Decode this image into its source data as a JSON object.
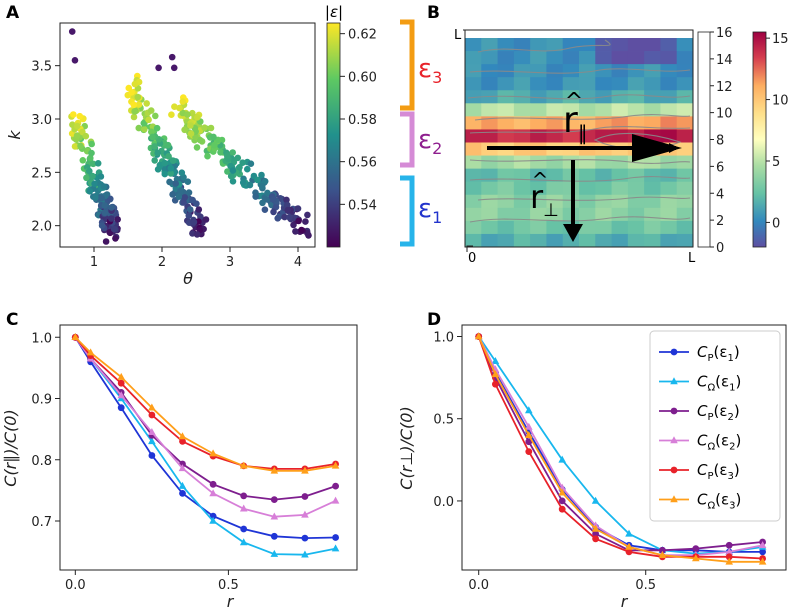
{
  "panels": {
    "A": "A",
    "B": "B",
    "C": "C",
    "D": "D"
  },
  "panelA": {
    "xlabel": "θ",
    "ylabel": "k",
    "xlim": [
      0.5,
      4.25
    ],
    "ylim": [
      1.8,
      3.9
    ],
    "xticks": [
      1,
      2,
      3,
      4
    ],
    "yticks": [
      2.0,
      2.5,
      3.0,
      3.5
    ],
    "ytick_labels": [
      "2.0",
      "2.5",
      "3.0",
      "3.5"
    ],
    "colorbar": {
      "label": "|ε|",
      "range": [
        0.52,
        0.625
      ],
      "ticks": [
        0.54,
        0.56,
        0.58,
        0.6,
        0.62
      ],
      "tick_labels": [
        "0.54",
        "0.56",
        "0.58",
        "0.60",
        "0.62"
      ]
    },
    "clusters": [
      {
        "name": "cluster-1",
        "theta_range": [
          0.75,
          1.3
        ],
        "k_top": 3.05,
        "k_bottom": 1.9
      },
      {
        "name": "cluster-2",
        "theta_range": [
          1.55,
          2.6
        ],
        "k_top": 3.35,
        "k_bottom": 1.95
      },
      {
        "name": "cluster-3",
        "theta_range": [
          2.2,
          4.1
        ],
        "k_top": 3.15,
        "k_bottom": 2.0
      }
    ],
    "outliers": [
      {
        "theta": 0.68,
        "k": 3.82
      },
      {
        "theta": 0.72,
        "k": 3.55
      },
      {
        "theta": 1.95,
        "k": 3.48
      },
      {
        "theta": 2.15,
        "k": 3.58
      },
      {
        "theta": 2.18,
        "k": 3.48
      }
    ]
  },
  "brackets": [
    {
      "label": "ε",
      "sub": "3",
      "color": "#f39c12",
      "text_color": "#e8222a"
    },
    {
      "label": "ε",
      "sub": "2",
      "color": "#d58bd6",
      "text_color": "#8e1e8e"
    },
    {
      "label": "ε",
      "sub": "1",
      "color": "#27b4ea",
      "text_color": "#2233cc"
    }
  ],
  "panelB": {
    "corner_top_left": "L",
    "corner_bottom_left": "0",
    "corner_bottom_right": "L",
    "r_par": "r",
    "r_par_sub": "∥",
    "r_perp": "r",
    "r_perp_sub": "⊥",
    "side_ticks": [
      "0",
      "2",
      "4",
      "6",
      "8",
      "10",
      "12",
      "14",
      "16"
    ],
    "colorbar": {
      "range": [
        -2,
        15.5
      ],
      "ticks": [
        0,
        5,
        10,
        15
      ],
      "tick_labels": [
        "0",
        "5",
        "10",
        "15"
      ]
    }
  },
  "panelC": {
    "xlabel": "r",
    "ylabel": "C(r∥)/C(0)",
    "xlim": [
      -0.05,
      0.92
    ],
    "ylim": [
      0.62,
      1.02
    ],
    "xticks": [
      0.0,
      0.5
    ],
    "xtick_labels": [
      "0.0",
      "0.5"
    ],
    "yticks": [
      0.7,
      0.8,
      0.9,
      1.0
    ],
    "ytick_labels": [
      "0.7",
      "0.8",
      "0.9",
      "1.0"
    ]
  },
  "panelD": {
    "xlabel": "r",
    "ylabel": "C(r⊥)/C(0)",
    "xlim": [
      -0.05,
      0.92
    ],
    "ylim": [
      -0.42,
      1.07
    ],
    "xticks": [
      0.0,
      0.5
    ],
    "xtick_labels": [
      "0.0",
      "0.5"
    ],
    "yticks": [
      0.0,
      0.5,
      1.0
    ],
    "ytick_labels": [
      "0.0",
      "0.5",
      "1.0"
    ]
  },
  "chart_data": [
    {
      "type": "line",
      "panel": "C",
      "xlabel": "r",
      "ylabel": "C(r∥)/C(0)",
      "x": [
        0.0,
        0.05,
        0.15,
        0.25,
        0.35,
        0.45,
        0.55,
        0.65,
        0.75,
        0.85
      ],
      "series": [
        {
          "name": "C_P(ε1)",
          "color": "#1f35d6",
          "marker": "circle",
          "values": [
            1.0,
            0.96,
            0.885,
            0.807,
            0.745,
            0.708,
            0.687,
            0.675,
            0.672,
            0.673
          ]
        },
        {
          "name": "C_Ω(ε1)",
          "color": "#18b7ee",
          "marker": "triangle",
          "values": [
            1.0,
            0.965,
            0.9,
            0.83,
            0.757,
            0.7,
            0.665,
            0.646,
            0.645,
            0.655
          ]
        },
        {
          "name": "C_P(ε2)",
          "color": "#7e1e8e",
          "marker": "circle",
          "values": [
            1.0,
            0.965,
            0.91,
            0.84,
            0.793,
            0.76,
            0.741,
            0.735,
            0.74,
            0.757
          ]
        },
        {
          "name": "C_Ω(ε2)",
          "color": "#d77fd8",
          "marker": "triangle",
          "values": [
            1.0,
            0.965,
            0.905,
            0.845,
            0.786,
            0.745,
            0.72,
            0.707,
            0.71,
            0.733
          ]
        },
        {
          "name": "C_P(ε3)",
          "color": "#e8222a",
          "marker": "circle",
          "values": [
            1.0,
            0.97,
            0.925,
            0.873,
            0.83,
            0.806,
            0.79,
            0.785,
            0.785,
            0.793
          ]
        },
        {
          "name": "C_Ω(ε3)",
          "color": "#ff9f1a",
          "marker": "triangle",
          "values": [
            1.0,
            0.975,
            0.935,
            0.885,
            0.838,
            0.81,
            0.79,
            0.782,
            0.782,
            0.79
          ]
        }
      ]
    },
    {
      "type": "line",
      "panel": "D",
      "xlabel": "r",
      "ylabel": "C(r⊥)/C(0)",
      "x": [
        0.0,
        0.05,
        0.15,
        0.25,
        0.35,
        0.45,
        0.55,
        0.65,
        0.75,
        0.85
      ],
      "series": [
        {
          "name": "C_P(ε1)",
          "color": "#1f35d6",
          "marker": "circle",
          "values": [
            1.0,
            0.78,
            0.42,
            0.07,
            -0.16,
            -0.27,
            -0.3,
            -0.3,
            -0.31,
            -0.31
          ]
        },
        {
          "name": "C_Ω(ε1)",
          "color": "#18b7ee",
          "marker": "triangle",
          "values": [
            1.0,
            0.85,
            0.55,
            0.25,
            0.0,
            -0.2,
            -0.3,
            -0.32,
            -0.31,
            -0.28
          ]
        },
        {
          "name": "C_P(ε2)",
          "color": "#7e1e8e",
          "marker": "circle",
          "values": [
            1.0,
            0.75,
            0.36,
            0.0,
            -0.2,
            -0.3,
            -0.3,
            -0.29,
            -0.27,
            -0.25
          ]
        },
        {
          "name": "C_Ω(ε2)",
          "color": "#d77fd8",
          "marker": "triangle",
          "values": [
            1.0,
            0.8,
            0.45,
            0.08,
            -0.15,
            -0.28,
            -0.33,
            -0.33,
            -0.31,
            -0.27
          ]
        },
        {
          "name": "C_P(ε3)",
          "color": "#e8222a",
          "marker": "circle",
          "values": [
            1.0,
            0.71,
            0.3,
            -0.05,
            -0.23,
            -0.31,
            -0.34,
            -0.34,
            -0.34,
            -0.35
          ]
        },
        {
          "name": "C_Ω(ε3)",
          "color": "#ff9f1a",
          "marker": "triangle",
          "values": [
            1.0,
            0.77,
            0.4,
            0.05,
            -0.17,
            -0.28,
            -0.33,
            -0.35,
            -0.37,
            -0.37
          ]
        }
      ],
      "legend": {
        "placement": "top-right",
        "entries": [
          {
            "main": "C",
            "sub": "P",
            "arg": "(ε",
            "argsub": "1",
            "close": ")"
          },
          {
            "main": "C",
            "sub": "Ω",
            "arg": "(ε",
            "argsub": "1",
            "close": ")"
          },
          {
            "main": "C",
            "sub": "P",
            "arg": "(ε",
            "argsub": "2",
            "close": ")"
          },
          {
            "main": "C",
            "sub": "Ω",
            "arg": "(ε",
            "argsub": "2",
            "close": ")"
          },
          {
            "main": "C",
            "sub": "P",
            "arg": "(ε",
            "argsub": "3",
            "close": ")"
          },
          {
            "main": "C",
            "sub": "Ω",
            "arg": "(ε",
            "argsub": "3",
            "close": ")"
          }
        ]
      }
    }
  ]
}
